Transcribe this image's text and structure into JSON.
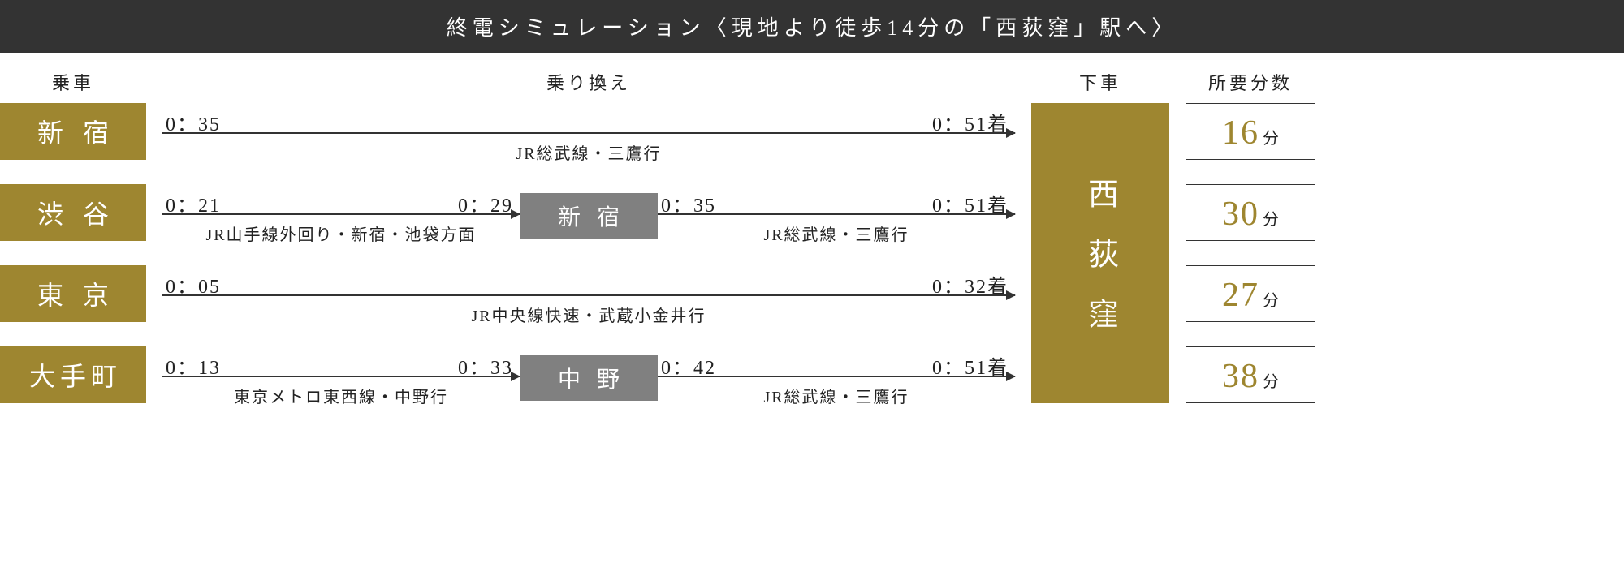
{
  "colors": {
    "header_bg": "#333333",
    "accent": "#9E8630",
    "transfer_bg": "#808080",
    "line": "#333333",
    "text": "#222222",
    "bg": "#ffffff"
  },
  "header": {
    "title": "終電シミュレーション〈現地より徒歩14分の「西荻窪」駅へ〉"
  },
  "column_headers": {
    "board": "乗車",
    "transfer": "乗り換え",
    "alight": "下車",
    "duration": "所要分数"
  },
  "destination": "西荻窪",
  "routes": [
    {
      "origin": "新宿",
      "segments": [
        {
          "depart": "0：35",
          "arrive": "0：51着",
          "line_label": "JR総武線・三鷹行"
        }
      ],
      "duration_min": "16",
      "duration_unit": "分"
    },
    {
      "origin": "渋谷",
      "segments": [
        {
          "depart": "0：21",
          "arrive": "0：29",
          "line_label": "JR山手線外回り・新宿・池袋方面"
        },
        {
          "transfer_station": "新宿"
        },
        {
          "depart": "0：35",
          "arrive": "0：51着",
          "line_label": "JR総武線・三鷹行"
        }
      ],
      "duration_min": "30",
      "duration_unit": "分"
    },
    {
      "origin": "東京",
      "segments": [
        {
          "depart": "0：05",
          "arrive": "0：32着",
          "line_label": "JR中央線快速・武蔵小金井行"
        }
      ],
      "duration_min": "27",
      "duration_unit": "分"
    },
    {
      "origin": "大手町",
      "segments": [
        {
          "depart": "0：13",
          "arrive": "0：33",
          "line_label": "東京メトロ東西線・中野行"
        },
        {
          "transfer_station": "中野"
        },
        {
          "depart": "0：42",
          "arrive": "0：51着",
          "line_label": "JR総武線・三鷹行"
        }
      ],
      "duration_min": "38",
      "duration_unit": "分"
    }
  ]
}
